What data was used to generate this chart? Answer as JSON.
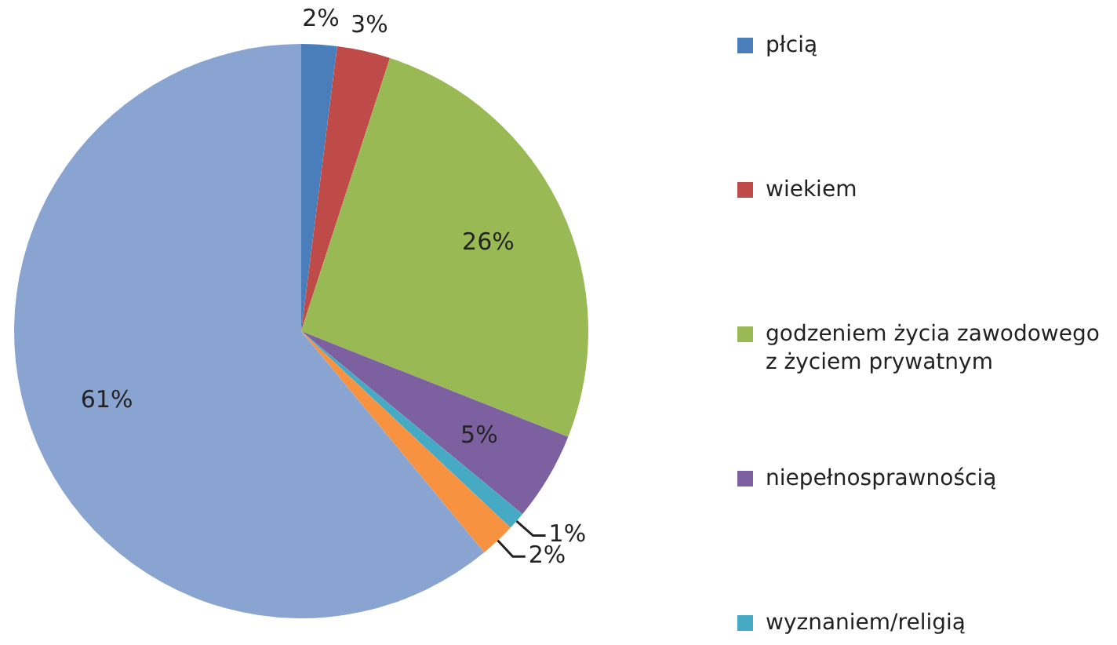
{
  "chart_data": {
    "type": "pie",
    "categories": [
      "płcią",
      "wiekiem",
      "godzeniem życia zawodowego z życiem prywatnym",
      "niepełnosprawnością",
      "wyznaniem/religią",
      null,
      null
    ],
    "values": [
      2,
      3,
      26,
      5,
      1,
      2,
      61
    ],
    "colors": [
      "#4a7ebb",
      "#be4b48",
      "#98b954",
      "#7d60a0",
      "#46aac5",
      "#f69240",
      "#8aa4d2"
    ],
    "value_labels": [
      "2%",
      "3%",
      "26%",
      "5%",
      "1%",
      "2%",
      "61%"
    ],
    "legend": "right"
  }
}
